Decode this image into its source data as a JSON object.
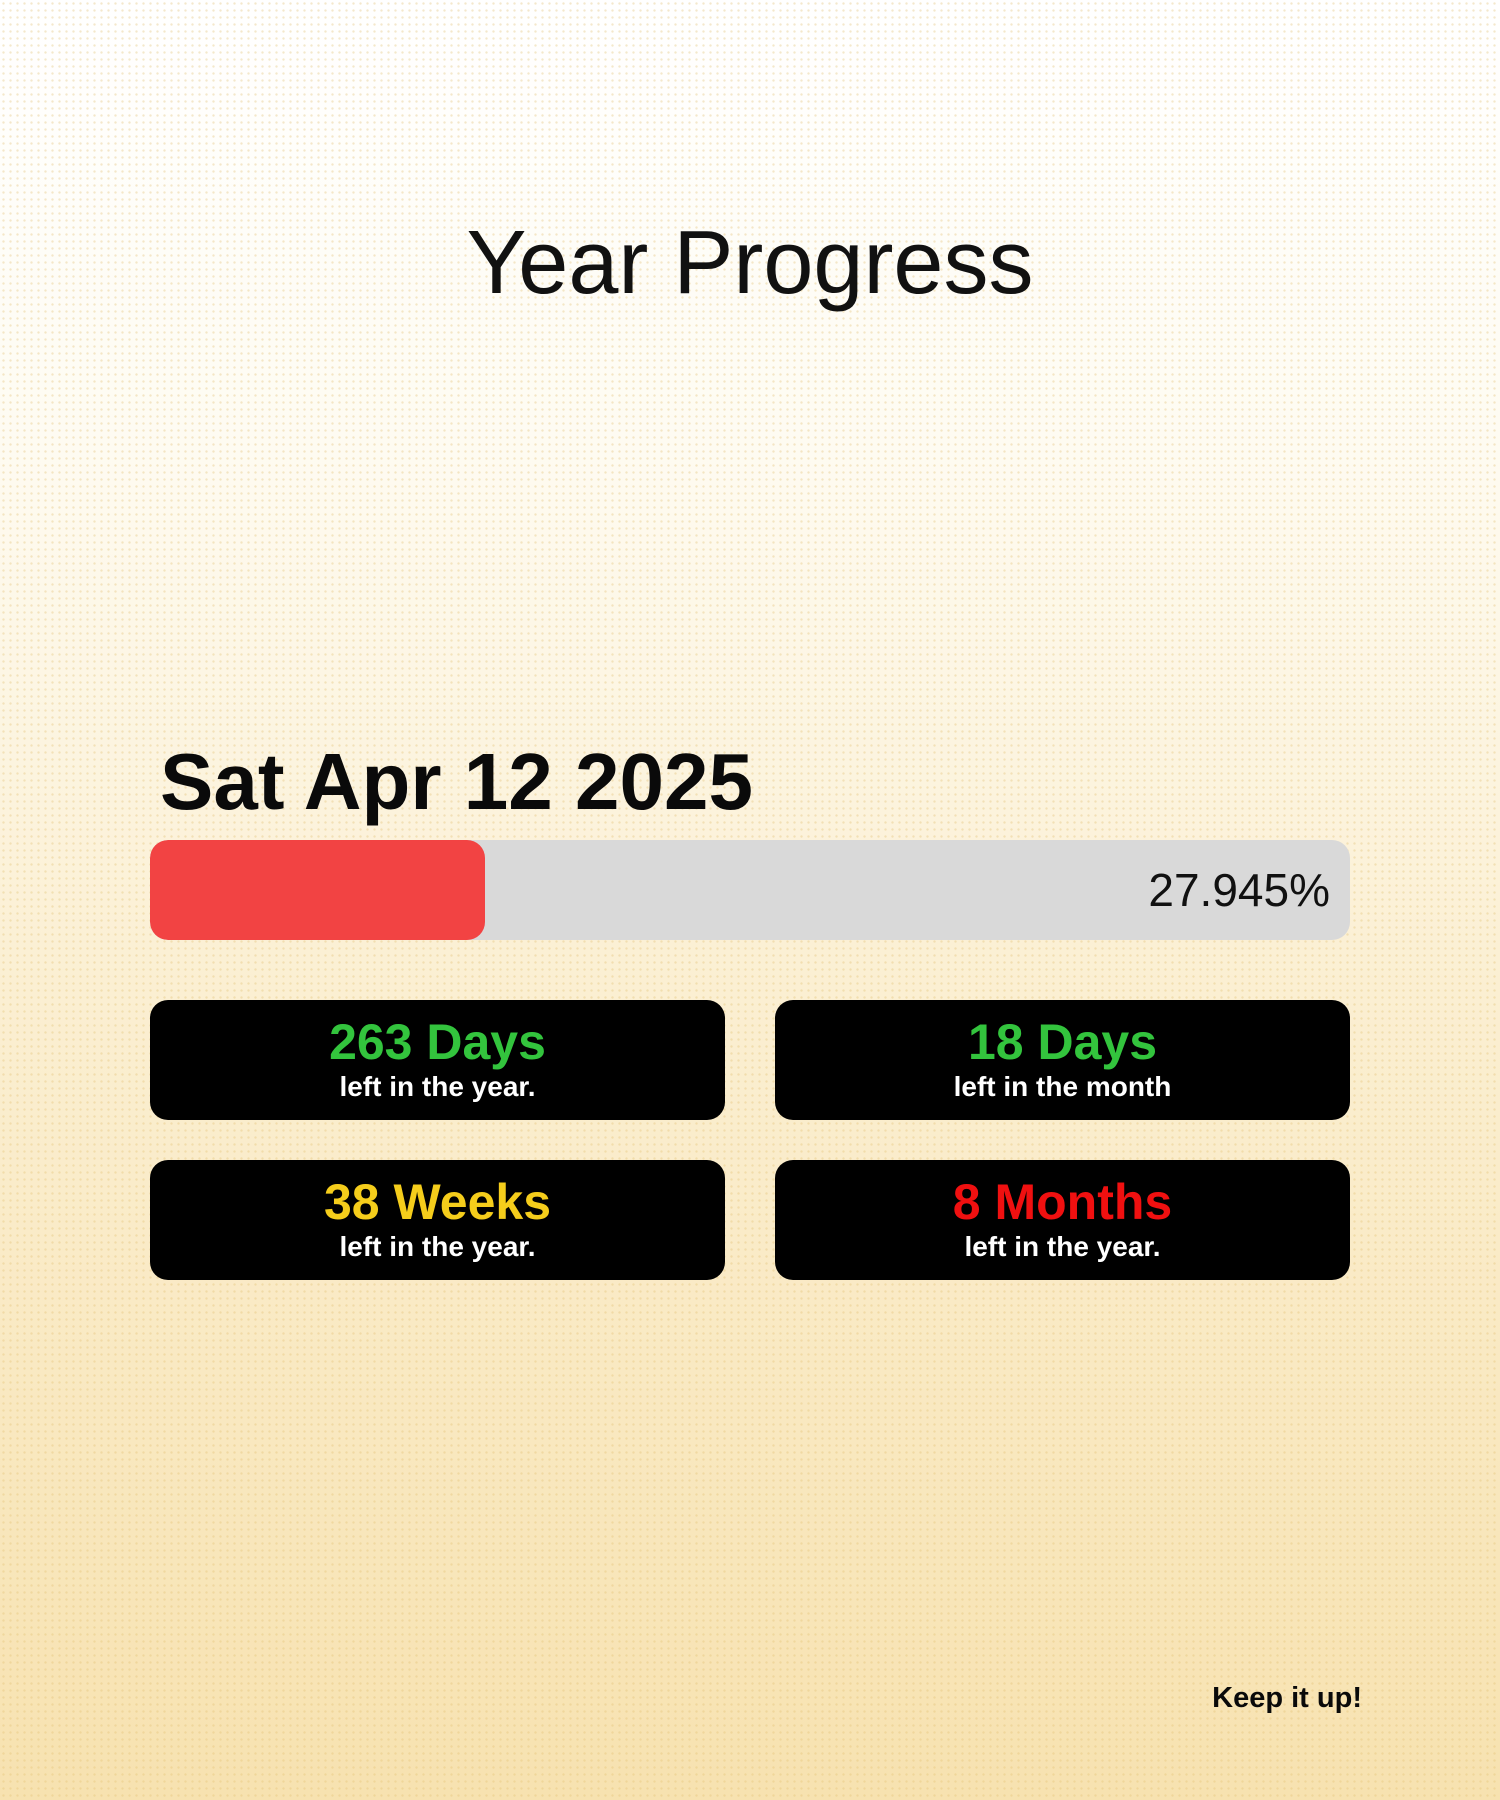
{
  "header": {
    "title": "Year Progress"
  },
  "date": {
    "label": "Sat Apr 12 2025"
  },
  "progress": {
    "percent": 27.945,
    "label": "27.945%",
    "fill_color": "#f24343",
    "track_color": "#d9d9d9"
  },
  "stats": [
    {
      "value": "263 Days",
      "caption": "left in the year.",
      "color": "#33c43d"
    },
    {
      "value": "18 Days",
      "caption": "left in the month",
      "color": "#33c43d"
    },
    {
      "value": "38 Weeks",
      "caption": "left in the year.",
      "color": "#f5cd1b"
    },
    {
      "value": "8 Months",
      "caption": "left in the year.",
      "color": "#f01010"
    }
  ],
  "footer": {
    "message": "Keep it up!"
  }
}
